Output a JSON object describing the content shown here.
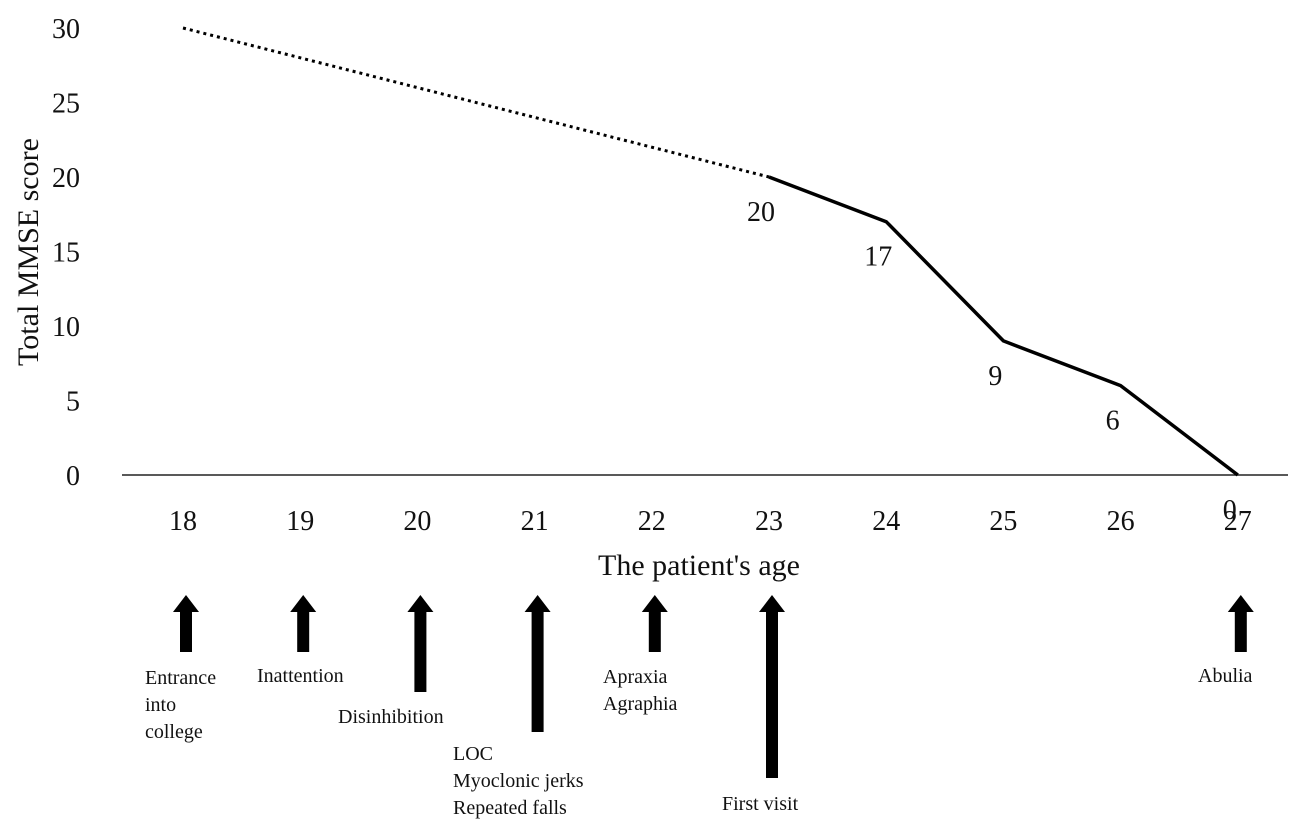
{
  "chart_data": {
    "type": "line",
    "xlabel": "The patient's age",
    "ylabel": "Total MMSE score",
    "x_ticks": [
      "18",
      "19",
      "20",
      "21",
      "22",
      "23",
      "24",
      "25",
      "26",
      "27"
    ],
    "y_ticks": [
      "0",
      "5",
      "10",
      "15",
      "20",
      "25",
      "30"
    ],
    "xlim": [
      18,
      27
    ],
    "ylim": [
      0,
      30
    ],
    "grid": false,
    "series": [
      {
        "style": "dotted",
        "points": [
          {
            "x": 18,
            "y": 30
          },
          {
            "x": 23,
            "y": 20
          }
        ]
      },
      {
        "style": "solid",
        "points": [
          {
            "x": 23,
            "y": 20,
            "label": "20"
          },
          {
            "x": 24,
            "y": 17,
            "label": "17"
          },
          {
            "x": 25,
            "y": 9,
            "label": "9"
          },
          {
            "x": 26,
            "y": 6,
            "label": "6"
          },
          {
            "x": 27,
            "y": 0,
            "label": "0"
          }
        ]
      }
    ],
    "events": [
      {
        "age": 18,
        "lines": [
          "Entrance",
          "into",
          "college"
        ]
      },
      {
        "age": 19,
        "lines": [
          "Inattention"
        ]
      },
      {
        "age": 20,
        "lines": [
          "Disinhibition"
        ]
      },
      {
        "age": 21,
        "lines": [
          "LOC",
          "Myoclonic  jerks",
          "Repeated falls"
        ]
      },
      {
        "age": 22,
        "lines": [
          "Apraxia",
          "Agraphia"
        ]
      },
      {
        "age": 23,
        "lines": [
          "First visit"
        ]
      },
      {
        "age": 27,
        "lines": [
          "Abulia"
        ]
      }
    ]
  }
}
